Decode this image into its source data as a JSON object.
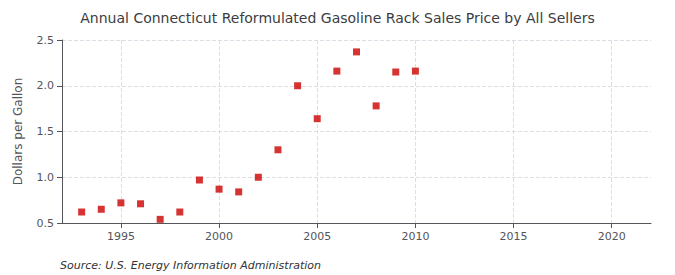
{
  "chart_data": {
    "type": "scatter",
    "title": "Annual Connecticut Reformulated Gasoline Rack Sales Price by All Sellers",
    "ylabel": "Dollars per Gallon",
    "annotations": [
      "Source: U.S. Energy Information Administration"
    ],
    "x": [
      1993,
      1994,
      1995,
      1996,
      1997,
      1998,
      1999,
      2000,
      2001,
      2002,
      2003,
      2004,
      2005,
      2006,
      2007,
      2008,
      2009,
      2010
    ],
    "values": [
      0.62,
      0.65,
      0.72,
      0.71,
      0.54,
      0.62,
      0.97,
      0.87,
      0.84,
      1.0,
      1.3,
      2.0,
      1.64,
      2.16,
      2.37,
      1.78,
      2.15,
      2.16
    ],
    "color": "#cc0000",
    "marker": "square",
    "xlim": [
      1992,
      2022
    ],
    "ylim": [
      0.5,
      2.5
    ],
    "xticks": [
      1995,
      2000,
      2005,
      2010,
      2015,
      2020
    ],
    "yticks": [
      0.5,
      {
        "value": 1.0,
        "label": "1.0"
      },
      1.5,
      {
        "value": 2.0,
        "label": "2.0"
      },
      2.5
    ],
    "grid": true
  }
}
